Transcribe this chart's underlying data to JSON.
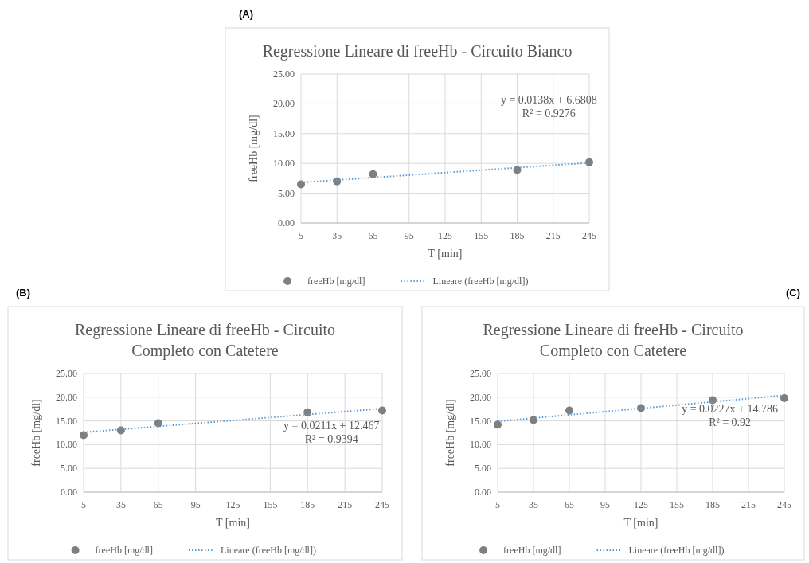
{
  "chart_data": [
    {
      "type": "scatter",
      "title": "Regressione Lineare di freeHb - Circuito Bianco",
      "xlabel": "T [min]",
      "ylabel": "freeHb [mg/dl]",
      "annotations": [
        "(A)",
        "y = 0.0138x + 6.6808",
        "R² = 0.9276"
      ],
      "xlim": [
        5,
        245
      ],
      "xticks": [
        5,
        35,
        65,
        95,
        125,
        155,
        185,
        215,
        245
      ],
      "ylim": [
        0,
        25
      ],
      "yticks": [
        {
          "value": 0,
          "label": "0.00"
        },
        {
          "value": 5,
          "label": "5.00"
        },
        {
          "value": 10,
          "label": "10.00"
        },
        {
          "value": 15,
          "label": "15.00"
        },
        {
          "value": 20,
          "label": "20.00"
        },
        {
          "value": 25,
          "label": "25.00"
        }
      ],
      "grid": true,
      "legend": "bottom",
      "series": [
        {
          "name": "freeHb [mg/dl]",
          "type": "scatter",
          "marker": "circle",
          "color": "#7f7f7f",
          "x": [
            5,
            35,
            65,
            185,
            245
          ],
          "values": [
            6.5,
            7.0,
            8.2,
            8.9,
            10.2
          ]
        },
        {
          "name": "Lineare (freeHb [mg/dl])",
          "type": "line",
          "marker": "none",
          "line_style": "dotted",
          "color": "#5b9bd5",
          "x": [
            5,
            245
          ],
          "values": [
            6.8,
            10.1
          ]
        }
      ]
    },
    {
      "type": "scatter",
      "title": "Regressione Lineare di freeHb - Circuito Completo con Catetere",
      "xlabel": "T [min]",
      "ylabel": "freeHb [mg/dl]",
      "annotations": [
        "(B)",
        "y = 0.0211x + 12.467",
        "R² = 0.9394"
      ],
      "xlim": [
        5,
        245
      ],
      "xticks": [
        5,
        35,
        65,
        95,
        125,
        155,
        185,
        215,
        245
      ],
      "ylim": [
        0,
        25
      ],
      "yticks": [
        {
          "value": 0,
          "label": "0.00"
        },
        {
          "value": 5,
          "label": "5.00"
        },
        {
          "value": 10,
          "label": "10.00"
        },
        {
          "value": 15,
          "label": "15.00"
        },
        {
          "value": 20,
          "label": "20.00"
        },
        {
          "value": 25,
          "label": "25.00"
        }
      ],
      "grid": true,
      "legend": "bottom",
      "series": [
        {
          "name": "freeHb [mg/dl]",
          "type": "scatter",
          "marker": "circle",
          "color": "#7f7f7f",
          "x": [
            5,
            35,
            65,
            185,
            245
          ],
          "values": [
            12.0,
            13.0,
            14.5,
            16.8,
            17.2
          ]
        },
        {
          "name": "Lineare (freeHb [mg/dl])",
          "type": "line",
          "marker": "none",
          "line_style": "dotted",
          "color": "#5b9bd5",
          "x": [
            5,
            245
          ],
          "values": [
            12.6,
            17.6
          ]
        }
      ]
    },
    {
      "type": "scatter",
      "title": "Regressione Lineare di freeHb - Circuito Completo con Catetere",
      "xlabel": "T [min]",
      "ylabel": "freeHb [mg/dl]",
      "annotations": [
        "(C)",
        "y = 0.0227x + 14.786",
        "R² = 0.92"
      ],
      "xlim": [
        5,
        245
      ],
      "xticks": [
        5,
        35,
        65,
        95,
        125,
        155,
        185,
        215,
        245
      ],
      "ylim": [
        0,
        25
      ],
      "yticks": [
        {
          "value": 0,
          "label": "0.00"
        },
        {
          "value": 5,
          "label": "5.00"
        },
        {
          "value": 10,
          "label": "10.00"
        },
        {
          "value": 15,
          "label": "15.00"
        },
        {
          "value": 20,
          "label": "20.00"
        },
        {
          "value": 25,
          "label": "25.00"
        }
      ],
      "grid": true,
      "legend": "bottom",
      "series": [
        {
          "name": "freeHb [mg/dl]",
          "type": "scatter",
          "marker": "circle",
          "color": "#7f7f7f",
          "x": [
            5,
            35,
            65,
            125,
            185,
            245
          ],
          "values": [
            14.2,
            15.2,
            17.2,
            17.7,
            19.4,
            19.8
          ]
        },
        {
          "name": "Lineare (freeHb [mg/dl])",
          "type": "line",
          "marker": "none",
          "line_style": "dotted",
          "color": "#5b9bd5",
          "x": [
            5,
            245
          ],
          "values": [
            14.9,
            20.4
          ]
        }
      ]
    }
  ]
}
